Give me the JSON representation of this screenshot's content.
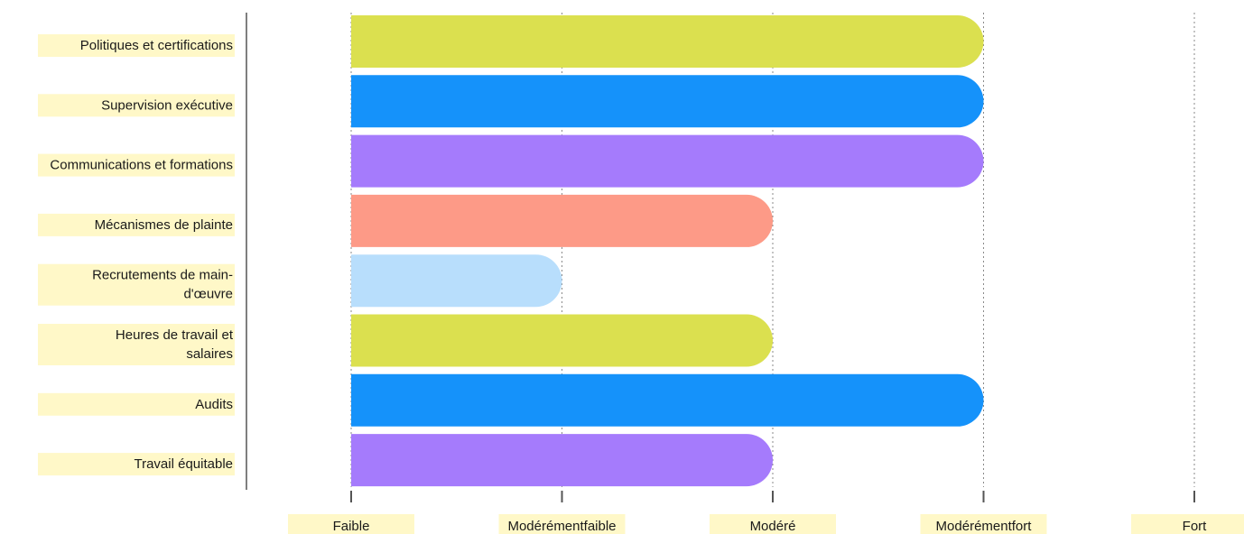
{
  "chart_data": {
    "type": "bar",
    "orientation": "horizontal",
    "title": "",
    "xlabel": "",
    "ylabel": "",
    "scale_levels": [
      "Faible",
      "Modérémentfaible",
      "Modéré",
      "Modérémentfort",
      "Fort"
    ],
    "categories": [
      [
        "Politiques et certifications"
      ],
      [
        "Supervision exécutive"
      ],
      [
        "Communications et formations"
      ],
      [
        "Mécanismes de plainte"
      ],
      [
        "Recrutements de main-",
        "d'œuvre"
      ],
      [
        "Heures de travail et",
        "salaires"
      ],
      [
        "Audits"
      ],
      [
        "Travail équitable"
      ]
    ],
    "values": [
      4,
      4,
      4,
      3,
      2,
      3,
      4,
      3
    ],
    "xlim": [
      1,
      5
    ],
    "grid": true,
    "colors": [
      "#dbe04f",
      "#1592fa",
      "#a57bfc",
      "#fd9a87",
      "#b8defc",
      "#dbe04f",
      "#1592fa",
      "#a57bfc"
    ]
  }
}
